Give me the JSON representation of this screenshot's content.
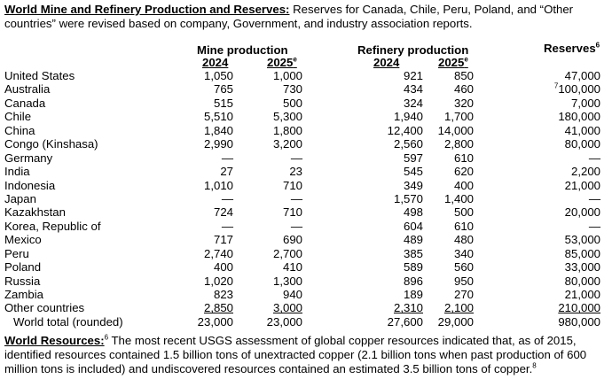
{
  "intro": {
    "heading": "World Mine and Refinery Production and Reserves:",
    "text": " Reserves for Canada, Chile, Peru, Poland, and “Other countries” were revised based on company, Government, and industry association reports."
  },
  "headers": {
    "mine_production": "Mine production",
    "refinery_production": "Refinery production",
    "reserves": "Reserves",
    "reserves_note": "6",
    "year_2024": "2024",
    "year_2025": "2025",
    "estimate_mark": "e"
  },
  "rows": [
    {
      "country": "United States",
      "mine_2024": "1,050",
      "mine_2025": "1,000",
      "ref_2024": "921",
      "ref_2025": "850",
      "reserves_note": "",
      "reserves": "47,000"
    },
    {
      "country": "Australia",
      "mine_2024": "765",
      "mine_2025": "730",
      "ref_2024": "434",
      "ref_2025": "460",
      "reserves_note": "7",
      "reserves": "100,000"
    },
    {
      "country": "Canada",
      "mine_2024": "515",
      "mine_2025": "500",
      "ref_2024": "324",
      "ref_2025": "320",
      "reserves_note": "",
      "reserves": "7,000"
    },
    {
      "country": "Chile",
      "mine_2024": "5,510",
      "mine_2025": "5,300",
      "ref_2024": "1,940",
      "ref_2025": "1,700",
      "reserves_note": "",
      "reserves": "180,000"
    },
    {
      "country": "China",
      "mine_2024": "1,840",
      "mine_2025": "1,800",
      "ref_2024": "12,400",
      "ref_2025": "14,000",
      "reserves_note": "",
      "reserves": "41,000"
    },
    {
      "country": "Congo (Kinshasa)",
      "mine_2024": "2,990",
      "mine_2025": "3,200",
      "ref_2024": "2,560",
      "ref_2025": "2,800",
      "reserves_note": "",
      "reserves": "80,000"
    },
    {
      "country": "Germany",
      "mine_2024": "—",
      "mine_2025": "—",
      "ref_2024": "597",
      "ref_2025": "610",
      "reserves_note": "",
      "reserves": "—"
    },
    {
      "country": "India",
      "mine_2024": "27",
      "mine_2025": "23",
      "ref_2024": "545",
      "ref_2025": "620",
      "reserves_note": "",
      "reserves": "2,200"
    },
    {
      "country": "Indonesia",
      "mine_2024": "1,010",
      "mine_2025": "710",
      "ref_2024": "349",
      "ref_2025": "400",
      "reserves_note": "",
      "reserves": "21,000"
    },
    {
      "country": "Japan",
      "mine_2024": "—",
      "mine_2025": "—",
      "ref_2024": "1,570",
      "ref_2025": "1,400",
      "reserves_note": "",
      "reserves": "—"
    },
    {
      "country": "Kazakhstan",
      "mine_2024": "724",
      "mine_2025": "710",
      "ref_2024": "498",
      "ref_2025": "500",
      "reserves_note": "",
      "reserves": "20,000"
    },
    {
      "country": "Korea, Republic of",
      "mine_2024": "—",
      "mine_2025": "—",
      "ref_2024": "604",
      "ref_2025": "610",
      "reserves_note": "",
      "reserves": "—"
    },
    {
      "country": "Mexico",
      "mine_2024": "717",
      "mine_2025": "690",
      "ref_2024": "489",
      "ref_2025": "480",
      "reserves_note": "",
      "reserves": "53,000"
    },
    {
      "country": "Peru",
      "mine_2024": "2,740",
      "mine_2025": "2,700",
      "ref_2024": "385",
      "ref_2025": "340",
      "reserves_note": "",
      "reserves": "85,000"
    },
    {
      "country": "Poland",
      "mine_2024": "400",
      "mine_2025": "410",
      "ref_2024": "589",
      "ref_2025": "560",
      "reserves_note": "",
      "reserves": "33,000"
    },
    {
      "country": "Russia",
      "mine_2024": "1,020",
      "mine_2025": "1,300",
      "ref_2024": "896",
      "ref_2025": "950",
      "reserves_note": "",
      "reserves": "80,000"
    },
    {
      "country": "Zambia",
      "mine_2024": "823",
      "mine_2025": "940",
      "ref_2024": "189",
      "ref_2025": "270",
      "reserves_note": "",
      "reserves": "21,000"
    },
    {
      "country": "Other countries",
      "mine_2024": "2,850",
      "mine_2025": "3,000",
      "ref_2024": "2,310",
      "ref_2025": "2,100",
      "reserves_note": "",
      "reserves": "210,000"
    }
  ],
  "total": {
    "country": "World total (rounded)",
    "mine_2024": "23,000",
    "mine_2025": "23,000",
    "ref_2024": "27,600",
    "ref_2025": "29,000",
    "reserves": "980,000"
  },
  "resources": {
    "heading": "World Resources:",
    "heading_note": "6",
    "text": " The most recent USGS assessment of global copper resources indicated that, as of 2015, identified resources contained 1.5 billion tons of unextracted copper (2.1 billion tons when past production of 600 million tons is included) and undiscovered resources contained an estimated 3.5 billion tons of copper.",
    "text_note": "8"
  }
}
